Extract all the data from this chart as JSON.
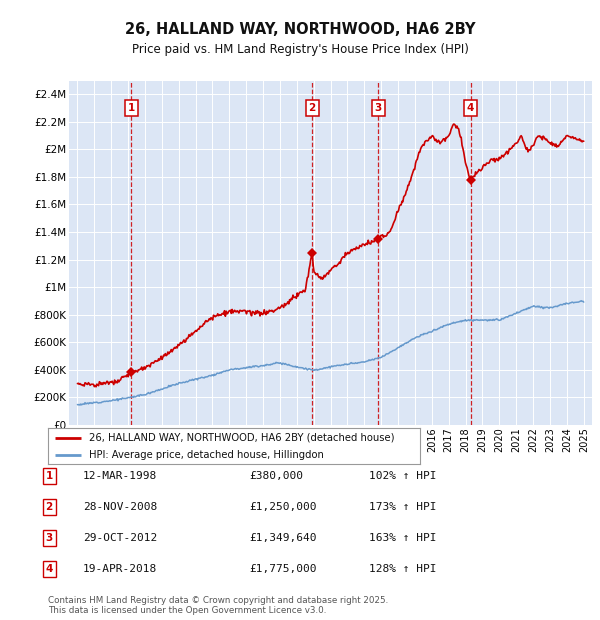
{
  "title": "26, HALLAND WAY, NORTHWOOD, HA6 2BY",
  "subtitle": "Price paid vs. HM Land Registry's House Price Index (HPI)",
  "background_color": "#ffffff",
  "plot_bg_color": "#dce6f5",
  "legend_line1": "26, HALLAND WAY, NORTHWOOD, HA6 2BY (detached house)",
  "legend_line2": "HPI: Average price, detached house, Hillingdon",
  "footer": "Contains HM Land Registry data © Crown copyright and database right 2025.\nThis data is licensed under the Open Government Licence v3.0.",
  "sale_markers": [
    {
      "num": 1,
      "date": "12-MAR-1998",
      "price": 380000,
      "price_str": "£380,000",
      "pct": "102%",
      "year": 1998.19
    },
    {
      "num": 2,
      "date": "28-NOV-2008",
      "price": 1250000,
      "price_str": "£1,250,000",
      "pct": "173%",
      "year": 2008.91
    },
    {
      "num": 3,
      "date": "29-OCT-2012",
      "price": 1349640,
      "price_str": "£1,349,640",
      "pct": "163%",
      "year": 2012.83
    },
    {
      "num": 4,
      "date": "19-APR-2018",
      "price": 1775000,
      "price_str": "£1,775,000",
      "pct": "128%",
      "year": 2018.3
    }
  ],
  "ylabel_ticks": [
    0,
    200000,
    400000,
    600000,
    800000,
    1000000,
    1200000,
    1400000,
    1600000,
    1800000,
    2000000,
    2200000,
    2400000
  ],
  "ylabel_labels": [
    "£0",
    "£200K",
    "£400K",
    "£600K",
    "£800K",
    "£1M",
    "£1.2M",
    "£1.4M",
    "£1.6M",
    "£1.8M",
    "£2M",
    "£2.2M",
    "£2.4M"
  ],
  "xmin": 1994.5,
  "xmax": 2025.5,
  "ymin": 0,
  "ymax": 2500000,
  "red_color": "#cc0000",
  "blue_color": "#6699cc",
  "hpi_anchors_years": [
    1995,
    1996,
    1997,
    1998,
    1999,
    2000,
    2001,
    2002,
    2003,
    2004,
    2005,
    2006,
    2007,
    2008,
    2009,
    2010,
    2011,
    2012,
    2013,
    2014,
    2015,
    2016,
    2017,
    2018,
    2019,
    2020,
    2021,
    2022,
    2023,
    2024,
    2025
  ],
  "hpi_anchors_vals": [
    145000,
    160000,
    175000,
    195000,
    220000,
    260000,
    300000,
    330000,
    360000,
    400000,
    415000,
    430000,
    450000,
    420000,
    395000,
    420000,
    440000,
    455000,
    490000,
    560000,
    630000,
    680000,
    730000,
    760000,
    760000,
    760000,
    810000,
    860000,
    850000,
    880000,
    900000
  ],
  "red_anchors_years": [
    1995.0,
    1996.0,
    1997.0,
    1997.5,
    1998.19,
    1998.5,
    1999.0,
    2000.0,
    2001.0,
    2002.0,
    2002.5,
    2003.0,
    2003.5,
    2004.0,
    2004.5,
    2005.0,
    2005.5,
    2006.0,
    2006.5,
    2007.0,
    2007.5,
    2008.0,
    2008.5,
    2008.91,
    2009.0,
    2009.5,
    2010.0,
    2010.5,
    2011.0,
    2011.5,
    2012.0,
    2012.5,
    2012.83,
    2013.0,
    2013.5,
    2014.0,
    2014.5,
    2015.0,
    2015.3,
    2015.6,
    2016.0,
    2016.5,
    2017.0,
    2017.3,
    2017.6,
    2018.0,
    2018.3,
    2018.6,
    2019.0,
    2019.5,
    2020.0,
    2020.5,
    2021.0,
    2021.3,
    2021.7,
    2022.0,
    2022.3,
    2022.7,
    2023.0,
    2023.5,
    2024.0,
    2024.5,
    2025.0
  ],
  "red_anchors_vals": [
    300000,
    290000,
    305000,
    320000,
    380000,
    390000,
    410000,
    490000,
    570000,
    680000,
    740000,
    780000,
    800000,
    820000,
    820000,
    820000,
    810000,
    810000,
    820000,
    850000,
    890000,
    940000,
    980000,
    1250000,
    1100000,
    1060000,
    1120000,
    1180000,
    1250000,
    1280000,
    1310000,
    1330000,
    1349640,
    1370000,
    1390000,
    1560000,
    1700000,
    1870000,
    2000000,
    2050000,
    2100000,
    2050000,
    2100000,
    2180000,
    2150000,
    1900000,
    1775000,
    1820000,
    1870000,
    1920000,
    1930000,
    1980000,
    2050000,
    2100000,
    1980000,
    2030000,
    2100000,
    2080000,
    2050000,
    2030000,
    2100000,
    2080000,
    2050000
  ]
}
